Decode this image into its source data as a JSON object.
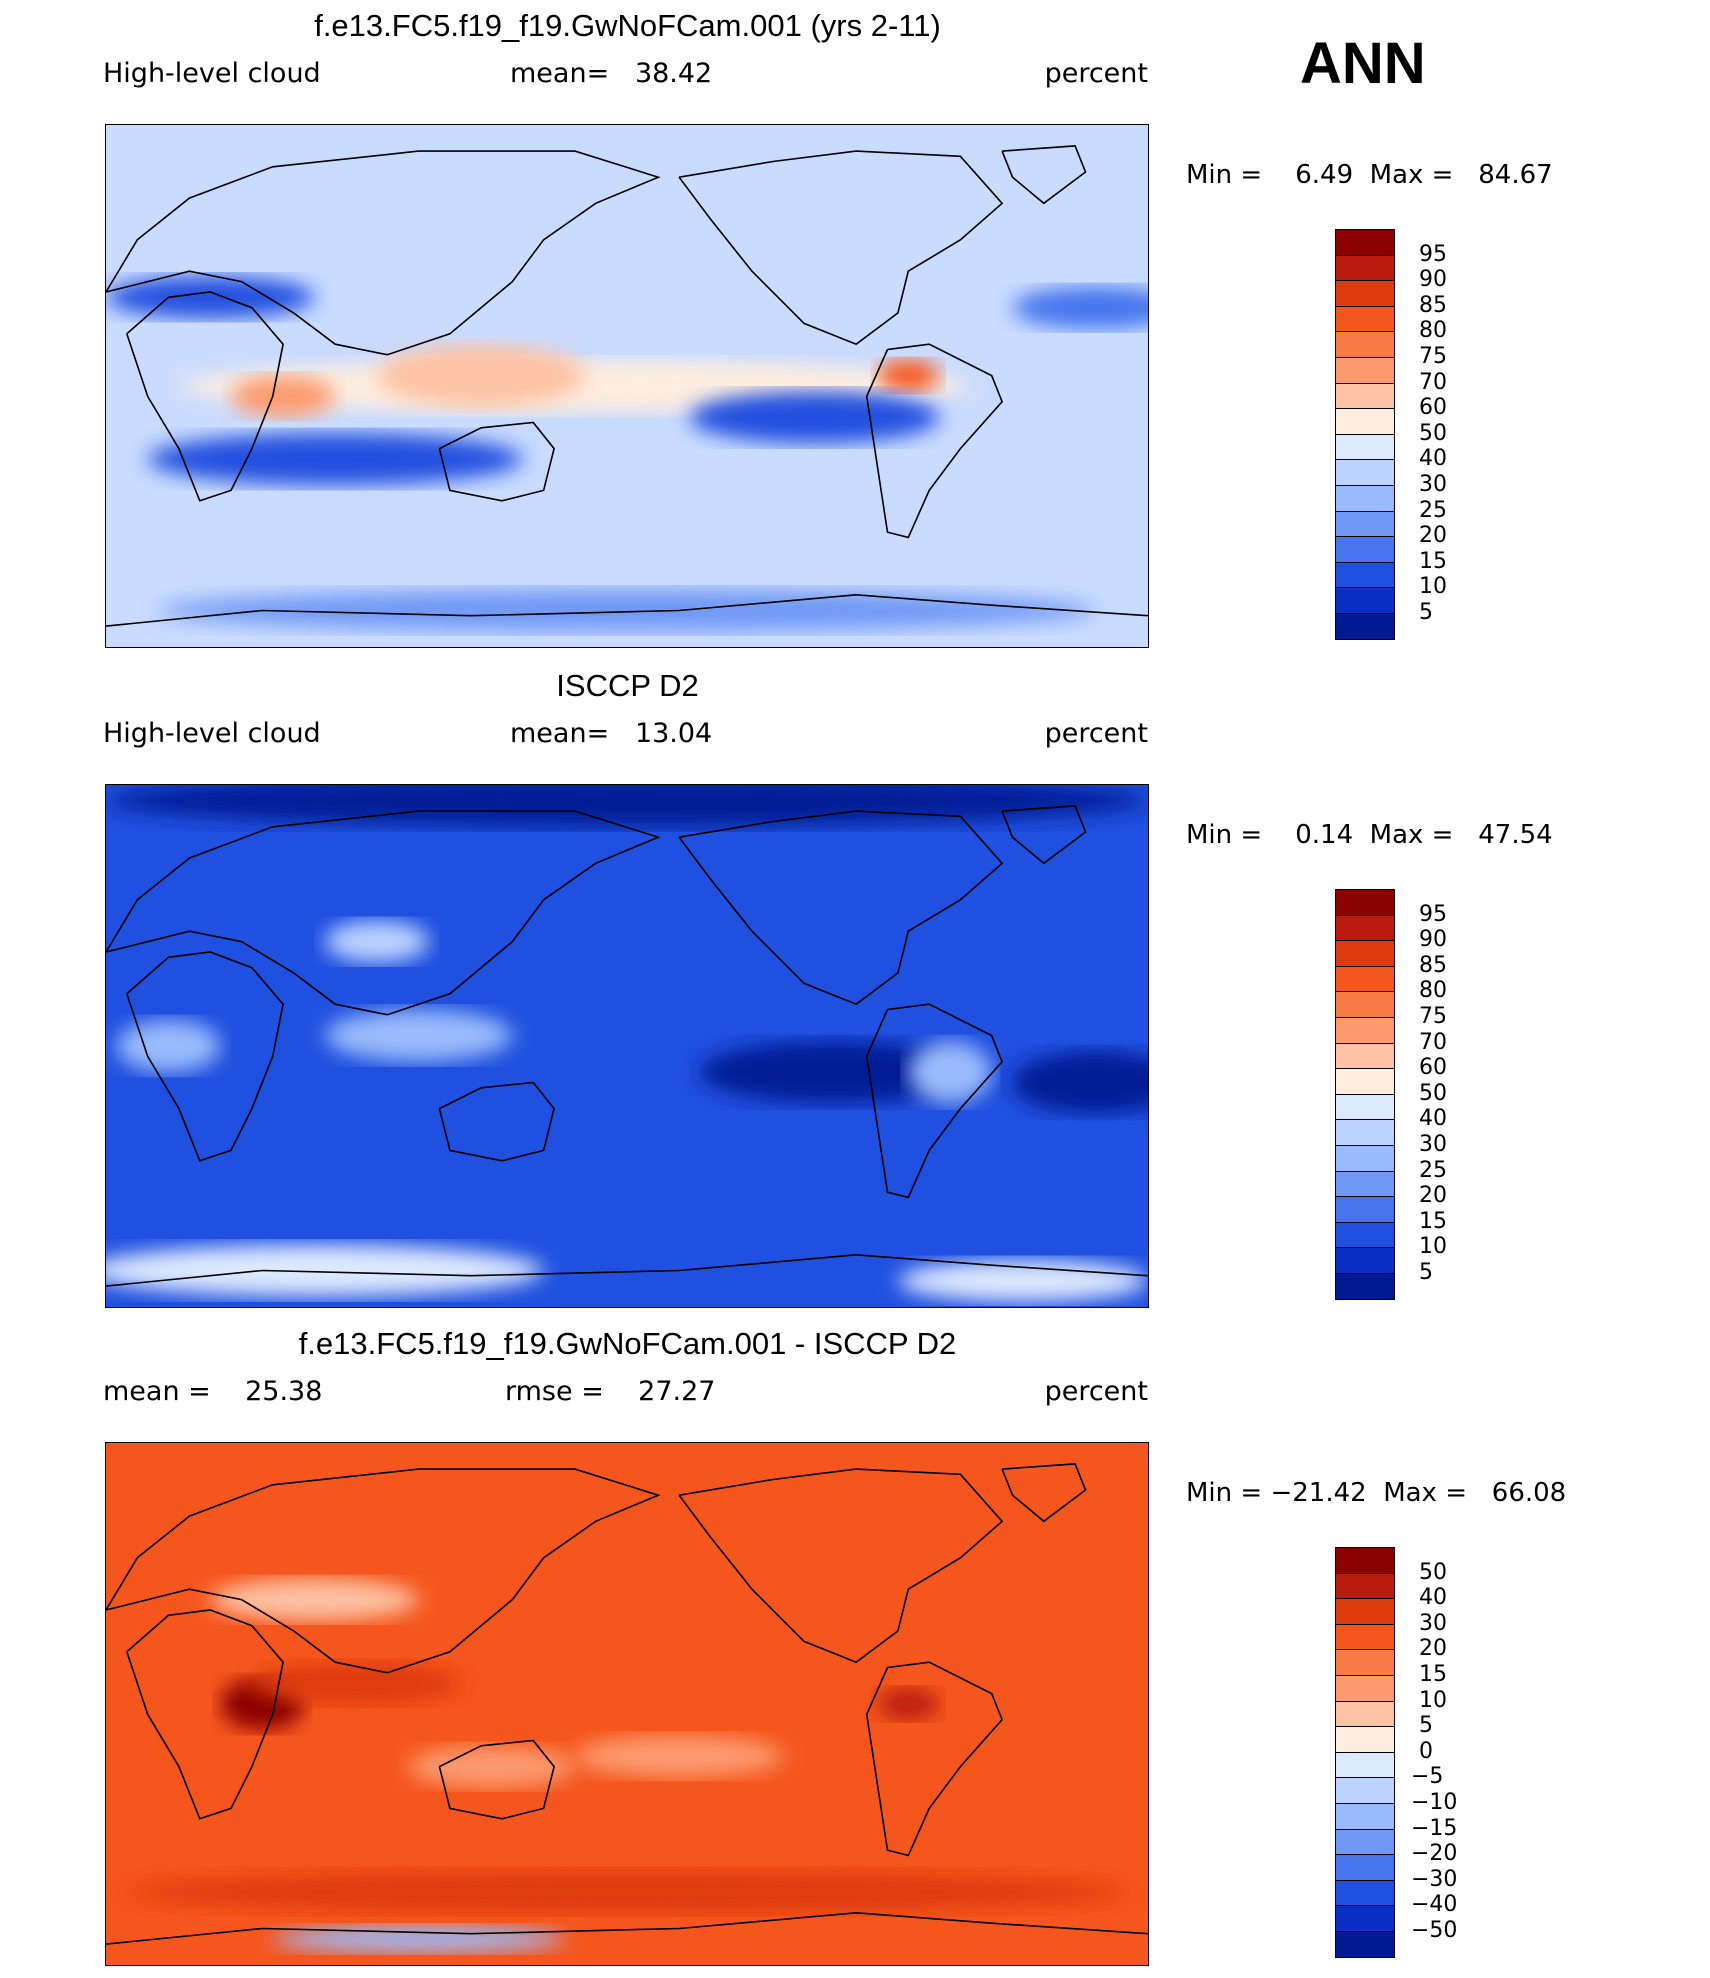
{
  "season": "ANN",
  "chart_data": [
    {
      "type": "heatmap",
      "title": "f.e13.FC5.f19_f19.GwNoFCam.001 (yrs 2-11)",
      "variable": "High-level cloud",
      "stat_text": "mean=   38.42",
      "units": "percent",
      "minmax_text": "Min =    6.49  Max =   84.67",
      "min": 6.49,
      "max": 84.67,
      "mean": 38.42,
      "colorbar_labels": [
        "95",
        "90",
        "85",
        "80",
        "75",
        "70",
        "60",
        "50",
        "40",
        "30",
        "25",
        "20",
        "15",
        "10",
        "5"
      ],
      "colorbar_colors": [
        "#8b0000",
        "#b81a0c",
        "#dd3a0e",
        "#f5561d",
        "#fa7a45",
        "#fc9b70",
        "#fdc3a4",
        "#feeedf",
        "#dde9ff",
        "#bcd3ff",
        "#99bbfc",
        "#6f99f5",
        "#4574ee",
        "#2050df",
        "#0a2fc4",
        "#001a94"
      ],
      "base_color": "#c9dbff",
      "features": [
        {
          "name": "tropical-high-band",
          "cx": 0.45,
          "cy": 0.5,
          "rx": 0.38,
          "ry": 0.05,
          "color": "#feeedf"
        },
        {
          "name": "africa-max",
          "cx": 0.17,
          "cy": 0.52,
          "rx": 0.05,
          "ry": 0.04,
          "color": "#fc9b70"
        },
        {
          "name": "warm-pool",
          "cx": 0.36,
          "cy": 0.48,
          "rx": 0.1,
          "ry": 0.06,
          "color": "#fdc3a4"
        },
        {
          "name": "amazon-max",
          "cx": 0.77,
          "cy": 0.48,
          "rx": 0.03,
          "ry": 0.03,
          "color": "#f5561d"
        },
        {
          "name": "south-subtropic-low",
          "cx": 0.22,
          "cy": 0.64,
          "rx": 0.18,
          "ry": 0.05,
          "color": "#2050df"
        },
        {
          "name": "east-pacific-low",
          "cx": 0.68,
          "cy": 0.56,
          "rx": 0.12,
          "ry": 0.05,
          "color": "#2050df"
        },
        {
          "name": "north-atlantic-low",
          "cx": 0.95,
          "cy": 0.35,
          "rx": 0.08,
          "ry": 0.04,
          "color": "#4574ee"
        },
        {
          "name": "mediterranean-low",
          "cx": 0.1,
          "cy": 0.33,
          "rx": 0.1,
          "ry": 0.04,
          "color": "#2050df"
        },
        {
          "name": "antarctic-low",
          "cx": 0.5,
          "cy": 0.93,
          "rx": 0.45,
          "ry": 0.04,
          "color": "#6f99f5"
        }
      ]
    },
    {
      "type": "heatmap",
      "title": "ISCCP D2",
      "variable": "High-level cloud",
      "stat_text": "mean=   13.04",
      "units": "percent",
      "minmax_text": "Min =    0.14  Max =   47.54",
      "min": 0.14,
      "max": 47.54,
      "mean": 13.04,
      "colorbar_labels": [
        "95",
        "90",
        "85",
        "80",
        "75",
        "70",
        "60",
        "50",
        "40",
        "30",
        "25",
        "20",
        "15",
        "10",
        "5"
      ],
      "colorbar_colors": [
        "#8b0000",
        "#b81a0c",
        "#dd3a0e",
        "#f5561d",
        "#fa7a45",
        "#fc9b70",
        "#fdc3a4",
        "#feeedf",
        "#dde9ff",
        "#bcd3ff",
        "#99bbfc",
        "#6f99f5",
        "#4574ee",
        "#2050df",
        "#0a2fc4",
        "#001a94"
      ],
      "base_color": "#2050df",
      "features": [
        {
          "name": "north-polar-min",
          "cx": 0.5,
          "cy": 0.03,
          "rx": 0.5,
          "ry": 0.05,
          "color": "#001a94"
        },
        {
          "name": "east-pacific-min",
          "cx": 0.7,
          "cy": 0.55,
          "rx": 0.13,
          "ry": 0.06,
          "color": "#001a94"
        },
        {
          "name": "atlantic-min",
          "cx": 0.95,
          "cy": 0.57,
          "rx": 0.08,
          "ry": 0.06,
          "color": "#001a94"
        },
        {
          "name": "warm-pool-max",
          "cx": 0.3,
          "cy": 0.48,
          "rx": 0.09,
          "ry": 0.05,
          "color": "#99bbfc"
        },
        {
          "name": "amazon-max",
          "cx": 0.81,
          "cy": 0.55,
          "rx": 0.04,
          "ry": 0.06,
          "color": "#99bbfc"
        },
        {
          "name": "africa-max",
          "cx": 0.06,
          "cy": 0.5,
          "rx": 0.05,
          "ry": 0.05,
          "color": "#99bbfc"
        },
        {
          "name": "tibet-max",
          "cx": 0.26,
          "cy": 0.3,
          "rx": 0.05,
          "ry": 0.04,
          "color": "#bcd3ff"
        },
        {
          "name": "antarctic-max",
          "cx": 0.2,
          "cy": 0.93,
          "rx": 0.22,
          "ry": 0.05,
          "color": "#dde9ff"
        },
        {
          "name": "antarctic-max-east",
          "cx": 0.88,
          "cy": 0.95,
          "rx": 0.12,
          "ry": 0.04,
          "color": "#dde9ff"
        }
      ]
    },
    {
      "type": "heatmap",
      "title": "f.e13.FC5.f19_f19.GwNoFCam.001 - ISCCP D2",
      "stat_text": "mean =    25.38",
      "stat2_text": "rmse =    27.27",
      "units": "percent",
      "minmax_text": "Min = −21.42  Max =   66.08",
      "min": -21.42,
      "max": 66.08,
      "mean": 25.38,
      "rmse": 27.27,
      "colorbar_labels": [
        "50",
        "40",
        "30",
        "20",
        "15",
        "10",
        "5",
        "0",
        "−5",
        "−10",
        "−15",
        "−20",
        "−30",
        "−40",
        "−50"
      ],
      "colorbar_colors": [
        "#8b0000",
        "#b81a0c",
        "#dd3a0e",
        "#f5561d",
        "#fa7a45",
        "#fc9b70",
        "#fdc3a4",
        "#feeedf",
        "#dde9ff",
        "#bcd3ff",
        "#99bbfc",
        "#6f99f5",
        "#4574ee",
        "#2050df",
        "#0a2fc4",
        "#001a94"
      ],
      "base_color": "#f5561d",
      "features": [
        {
          "name": "africa-max",
          "cx": 0.15,
          "cy": 0.5,
          "rx": 0.04,
          "ry": 0.05,
          "color": "#8b0000"
        },
        {
          "name": "amazon-max",
          "cx": 0.77,
          "cy": 0.5,
          "rx": 0.03,
          "ry": 0.03,
          "color": "#b81a0c"
        },
        {
          "name": "south-band-high",
          "cx": 0.5,
          "cy": 0.86,
          "rx": 0.48,
          "ry": 0.04,
          "color": "#dd3a0e"
        },
        {
          "name": "indian-ocean-high",
          "cx": 0.24,
          "cy": 0.46,
          "rx": 0.1,
          "ry": 0.04,
          "color": "#dd3a0e"
        },
        {
          "name": "asia-low",
          "cx": 0.2,
          "cy": 0.3,
          "rx": 0.1,
          "ry": 0.04,
          "color": "#fdc3a4"
        },
        {
          "name": "south-pacific-low",
          "cx": 0.55,
          "cy": 0.6,
          "rx": 0.1,
          "ry": 0.04,
          "color": "#fc9b70"
        },
        {
          "name": "australia-low",
          "cx": 0.37,
          "cy": 0.62,
          "rx": 0.08,
          "ry": 0.04,
          "color": "#fc9b70"
        },
        {
          "name": "antarctic-min",
          "cx": 0.3,
          "cy": 0.95,
          "rx": 0.14,
          "ry": 0.025,
          "color": "#99bbfc"
        }
      ]
    }
  ]
}
